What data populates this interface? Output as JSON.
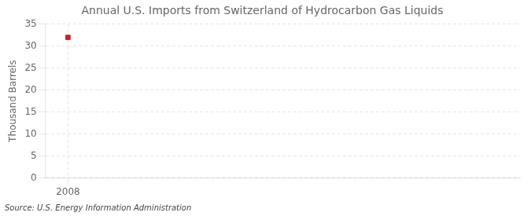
{
  "chart_data": {
    "type": "scatter",
    "title": "Annual U.S. Imports from Switzerland of Hydrocarbon Gas Liquids",
    "ylabel": "Thousand Barrels",
    "source": "Source: U.S. Energy Information Administration",
    "x": [
      2008
    ],
    "values": [
      32
    ],
    "color": "#cc2222",
    "marker": "square",
    "xlim": [
      2007.4,
      2020
    ],
    "xticks": [
      2008
    ],
    "ylim": [
      0,
      35
    ],
    "yticks": [
      0,
      5,
      10,
      15,
      20,
      25,
      30,
      35
    ],
    "grid": true
  }
}
